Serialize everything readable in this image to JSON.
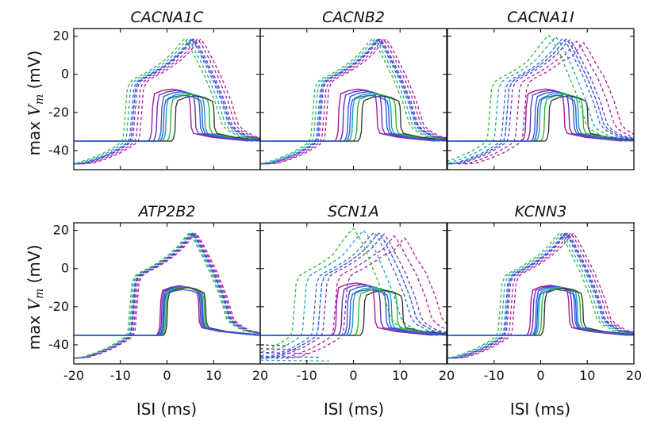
{
  "figure": {
    "ylabel_prefix": "max ",
    "ylabel_var": "V",
    "ylabel_sub": "m",
    "ylabel_suffix": " (mV)",
    "xlabel": "ISI (ms)"
  },
  "colors": {
    "palette": [
      "#3a3a3a",
      "#a8199a",
      "#6a2fbf",
      "#2f5fd8",
      "#17a3b7",
      "#2eb82e"
    ],
    "upper_left": "#4a3fa8"
  },
  "chart_data": [
    {
      "type": "line",
      "title": "CACNA1C",
      "xlim": [
        -20,
        20
      ],
      "ylim": [
        -50,
        24
      ],
      "xticks": [],
      "yticks": [
        20,
        0,
        -20,
        -40
      ],
      "upper_spread": 0.7,
      "lower_spread": 1.0,
      "upper_peak_spread": 0.0,
      "lower_peak_spread": 1.2,
      "left_lines": [
        -47.5
      ]
    },
    {
      "type": "line",
      "title": "CACNB2",
      "xlim": [
        -20,
        20
      ],
      "ylim": [
        -50,
        24
      ],
      "xticks": [],
      "yticks": [],
      "upper_spread": 0.6,
      "lower_spread": 1.0,
      "upper_peak_spread": 0.0,
      "lower_peak_spread": 1.2,
      "left_lines": [
        -47.5
      ]
    },
    {
      "type": "line",
      "title": "CACNA1I",
      "xlim": [
        -20,
        20
      ],
      "ylim": [
        -50,
        24
      ],
      "xticks": [],
      "yticks": [],
      "upper_spread": 1.5,
      "lower_spread": 1.0,
      "upper_peak_spread": 0.8,
      "lower_peak_spread": 1.2,
      "left_lines": [
        -47.5
      ]
    },
    {
      "type": "line",
      "title": "ATP2B2",
      "xlim": [
        -20,
        20
      ],
      "ylim": [
        -50,
        24
      ],
      "xticks": [
        -20,
        -10,
        0,
        10,
        20
      ],
      "yticks": [
        20,
        0,
        -20,
        -40
      ],
      "upper_spread": 0.3,
      "lower_spread": 0.3,
      "upper_peak_spread": 0.0,
      "lower_peak_spread": 0.3,
      "left_lines": [
        -47.5
      ]
    },
    {
      "type": "line",
      "title": "SCN1A",
      "xlim": [
        -20,
        20
      ],
      "ylim": [
        -50,
        24
      ],
      "xticks": [
        -10,
        0,
        10,
        20
      ],
      "yticks": [],
      "upper_spread": 2.2,
      "lower_spread": 1.2,
      "upper_peak_spread": 1.0,
      "lower_peak_spread": 1.3,
      "left_lines": [
        -40,
        -42,
        -44,
        -46,
        -48
      ]
    },
    {
      "type": "line",
      "title": "KCNN3",
      "xlim": [
        -20,
        20
      ],
      "ylim": [
        -50,
        24
      ],
      "xticks": [
        -10,
        0,
        10,
        20
      ],
      "yticks": [],
      "upper_spread": 0.6,
      "lower_spread": 0.6,
      "upper_peak_spread": 0.0,
      "lower_peak_spread": 0.5,
      "left_lines": [
        -47.5
      ]
    }
  ]
}
